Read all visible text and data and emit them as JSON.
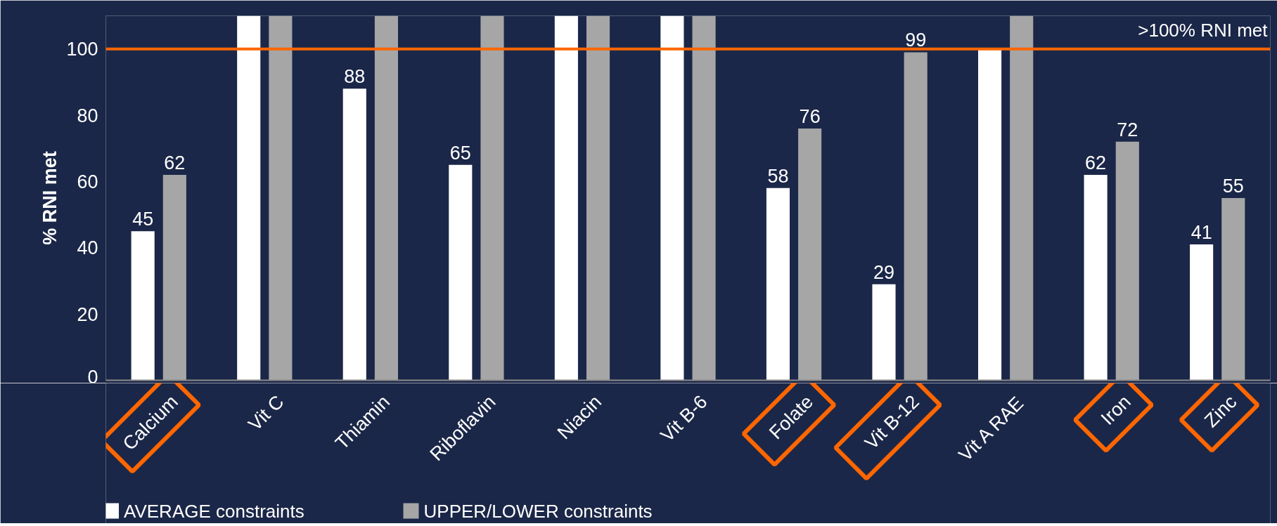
{
  "chart_data": {
    "type": "bar",
    "ylabel": "% RNI met",
    "categories": [
      "Calcium",
      "Vit C",
      "Thiamin",
      "Riboflavin",
      "Niacin",
      "Vit B-6",
      "Folate",
      "Vit B-12",
      "Vit A RAE",
      "Iron",
      "Zinc"
    ],
    "series": [
      {
        "name": "AVERAGE constraints",
        "color": "#ffffff",
        "values": [
          45,
          110,
          88,
          65,
          110,
          110,
          58,
          29,
          100,
          62,
          41
        ],
        "value_labels": [
          "45",
          null,
          "88",
          "65",
          null,
          null,
          "58",
          "29",
          null,
          "62",
          "41"
        ]
      },
      {
        "name": "UPPER/LOWER constraints",
        "color": "#a6a6a6",
        "values": [
          62,
          110,
          110,
          110,
          110,
          110,
          76,
          99,
          110,
          72,
          55
        ],
        "value_labels": [
          "62",
          null,
          null,
          null,
          null,
          null,
          "76",
          "99",
          null,
          "72",
          "55"
        ]
      }
    ],
    "ylim": [
      0,
      110
    ],
    "yticks": [
      0,
      20,
      40,
      60,
      80,
      100
    ],
    "grid": false,
    "legend": "bottom left",
    "ref_lines": [
      {
        "axis": "y",
        "value": 100,
        "label": ">100% RNI met",
        "color": "#ff6600"
      }
    ]
  }
}
